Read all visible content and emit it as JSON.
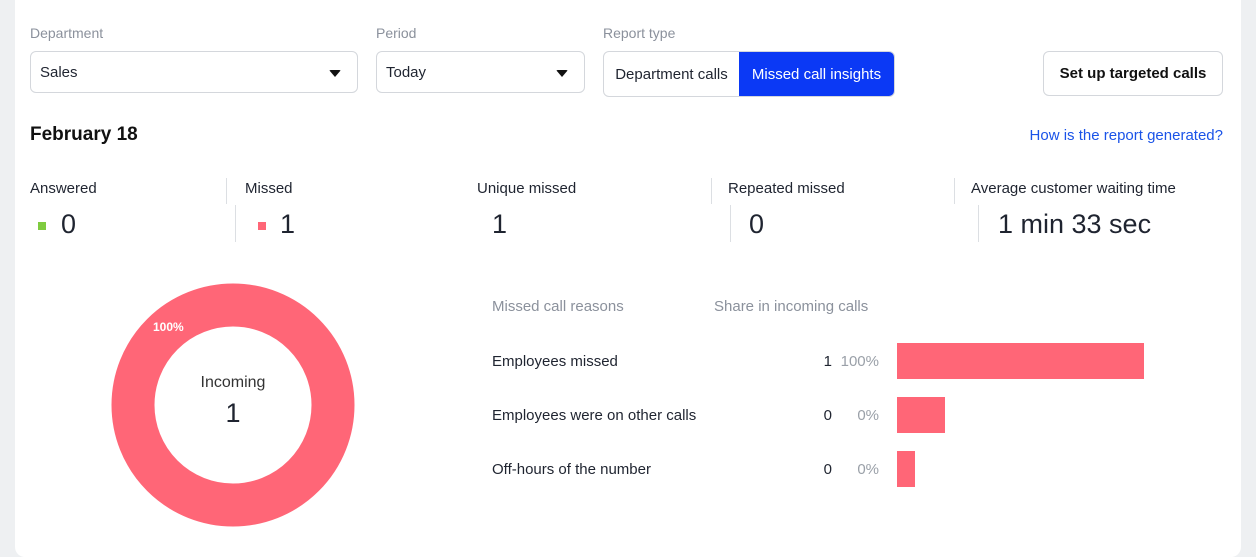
{
  "colors": {
    "answered": "#7fcb3f",
    "missed": "#ff6677",
    "accent": "#0b39f5",
    "link": "#1a53e8"
  },
  "filters": {
    "department": {
      "label": "Department",
      "value": "Sales"
    },
    "period": {
      "label": "Period",
      "value": "Today"
    },
    "report_type": {
      "label": "Report type",
      "options": [
        "Department calls",
        "Missed call insights"
      ],
      "selected": "Missed call insights"
    },
    "setup_button": "Set up targeted calls"
  },
  "report": {
    "date": "February 18",
    "help_link": "How is the report generated?"
  },
  "stats": {
    "answered": {
      "label": "Answered",
      "value": "0"
    },
    "missed": {
      "label": "Missed",
      "value": "1"
    },
    "unique_missed": {
      "label": "Unique missed",
      "value": "1"
    },
    "repeated_missed": {
      "label": "Repeated missed",
      "value": "0"
    },
    "avg_wait": {
      "label": "Average customer waiting time",
      "value": "1 min 33 sec"
    }
  },
  "donut": {
    "center_label": "Incoming",
    "center_value": "1",
    "segment_label": "100%",
    "missed_share": 1.0
  },
  "reasons": {
    "header_reason": "Missed call reasons",
    "header_share": "Share in incoming calls",
    "rows": [
      {
        "label": "Employees missed",
        "count": "1",
        "pct": "100%",
        "share": 1.0
      },
      {
        "label": "Employees were on other calls",
        "count": "0",
        "pct": "0%",
        "share": 0.0
      },
      {
        "label": "Off-hours of the number",
        "count": "0",
        "pct": "0%",
        "share": 0.0
      }
    ]
  }
}
